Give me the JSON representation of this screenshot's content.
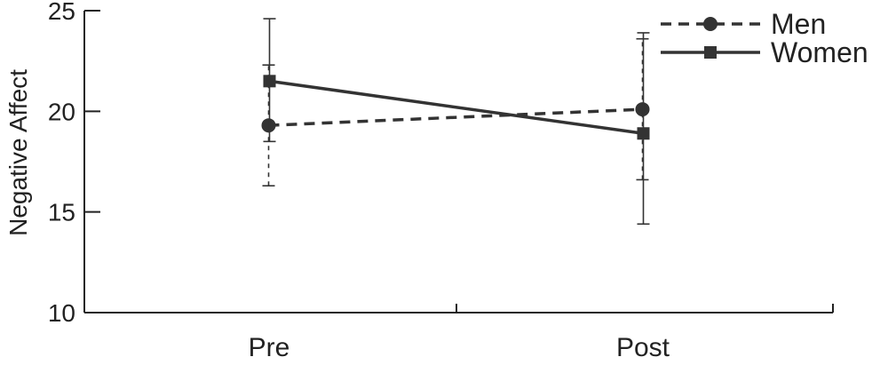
{
  "chart_data": {
    "type": "line",
    "categories": [
      "Pre",
      "Post"
    ],
    "ylabel": "Negative Affect",
    "xlabel": "",
    "ylim": [
      10,
      25
    ],
    "yticks": [
      10,
      15,
      20,
      25
    ],
    "grid": false,
    "legend_position": "top-right",
    "series": [
      {
        "name": "Men",
        "values": [
          19.3,
          20.1
        ],
        "error_low": [
          16.3,
          16.6
        ],
        "error_high": [
          22.3,
          23.6
        ],
        "line_style": "dashed",
        "marker": "circle",
        "color": "#333333"
      },
      {
        "name": "Women",
        "values": [
          21.5,
          18.9
        ],
        "error_low": [
          18.5,
          14.4
        ],
        "error_high": [
          24.6,
          23.9
        ],
        "line_style": "solid",
        "marker": "square",
        "color": "#333333"
      }
    ]
  }
}
